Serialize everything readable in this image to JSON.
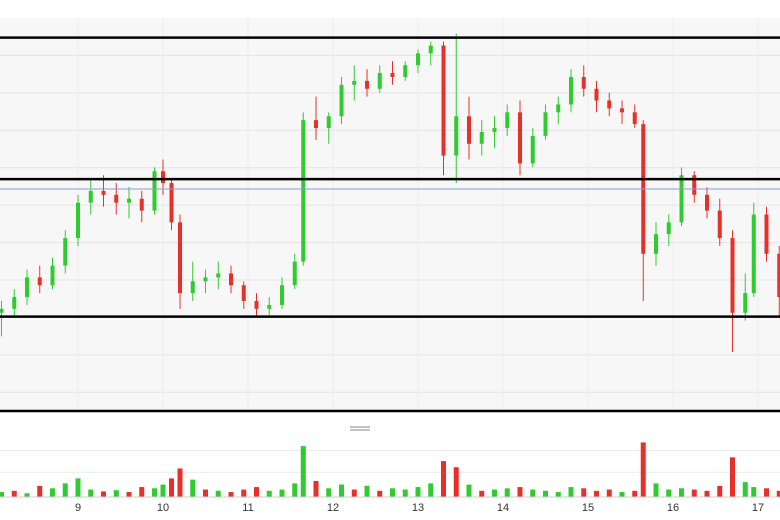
{
  "chart_data": [
    {
      "type": "candlestick",
      "title": "",
      "xlabel": "",
      "ylabel": "",
      "x_ticks": [
        "9",
        "10",
        "11",
        "12",
        "13",
        "14",
        "15",
        "16",
        "17"
      ],
      "x_tick_values": [
        9,
        10,
        11,
        12,
        13,
        14,
        15,
        16,
        17
      ],
      "grid": true,
      "colors": {
        "up": "#2ecc2e",
        "down": "#e8302a",
        "current_price_line": "#8a9ccc",
        "level_lines": "#000000"
      },
      "price_window": {
        "low": 0.0,
        "high": 100.0
      },
      "horizontal_levels": [
        95.0,
        59.0,
        24.0
      ],
      "current_price_level": 56.5,
      "series": [
        {
          "candles": [
            {
              "x": 8.1,
              "o": 25,
              "h": 28,
              "l": 19,
              "c": 26
            },
            {
              "x": 8.25,
              "o": 26,
              "h": 31,
              "l": 24,
              "c": 29
            },
            {
              "x": 8.4,
              "o": 29,
              "h": 36,
              "l": 27,
              "c": 34
            },
            {
              "x": 8.55,
              "o": 34,
              "h": 37,
              "l": 30,
              "c": 32
            },
            {
              "x": 8.7,
              "o": 32,
              "h": 39,
              "l": 31,
              "c": 37
            },
            {
              "x": 8.85,
              "o": 37,
              "h": 46,
              "l": 35,
              "c": 44
            },
            {
              "x": 9.0,
              "o": 44,
              "h": 55,
              "l": 42,
              "c": 53
            },
            {
              "x": 9.15,
              "o": 53,
              "h": 59,
              "l": 50,
              "c": 56
            },
            {
              "x": 9.3,
              "o": 56,
              "h": 60,
              "l": 52,
              "c": 55
            },
            {
              "x": 9.45,
              "o": 55,
              "h": 58,
              "l": 50,
              "c": 53
            },
            {
              "x": 9.6,
              "o": 53,
              "h": 57,
              "l": 49,
              "c": 54
            },
            {
              "x": 9.75,
              "o": 54,
              "h": 56,
              "l": 48,
              "c": 51
            },
            {
              "x": 9.9,
              "o": 51,
              "h": 62,
              "l": 50,
              "c": 61
            },
            {
              "x": 10.0,
              "o": 61,
              "h": 64,
              "l": 55,
              "c": 58
            },
            {
              "x": 10.1,
              "o": 58,
              "h": 59,
              "l": 46,
              "c": 48
            },
            {
              "x": 10.2,
              "o": 48,
              "h": 50,
              "l": 26,
              "c": 30
            },
            {
              "x": 10.35,
              "o": 30,
              "h": 38,
              "l": 28,
              "c": 33
            },
            {
              "x": 10.5,
              "o": 33,
              "h": 36,
              "l": 30,
              "c": 34
            },
            {
              "x": 10.65,
              "o": 34,
              "h": 38,
              "l": 31,
              "c": 35
            },
            {
              "x": 10.8,
              "o": 35,
              "h": 37,
              "l": 30,
              "c": 32
            },
            {
              "x": 10.95,
              "o": 32,
              "h": 33,
              "l": 26,
              "c": 28
            },
            {
              "x": 11.1,
              "o": 28,
              "h": 30,
              "l": 24,
              "c": 26
            },
            {
              "x": 11.25,
              "o": 26,
              "h": 29,
              "l": 24,
              "c": 27
            },
            {
              "x": 11.4,
              "o": 27,
              "h": 34,
              "l": 26,
              "c": 32
            },
            {
              "x": 11.55,
              "o": 32,
              "h": 40,
              "l": 31,
              "c": 38
            },
            {
              "x": 11.65,
              "o": 38,
              "h": 76,
              "l": 37,
              "c": 74
            },
            {
              "x": 11.8,
              "o": 74,
              "h": 80,
              "l": 69,
              "c": 72
            },
            {
              "x": 11.95,
              "o": 72,
              "h": 76,
              "l": 68,
              "c": 75
            },
            {
              "x": 12.1,
              "o": 75,
              "h": 85,
              "l": 73,
              "c": 83
            },
            {
              "x": 12.25,
              "o": 83,
              "h": 88,
              "l": 79,
              "c": 84
            },
            {
              "x": 12.4,
              "o": 84,
              "h": 87,
              "l": 80,
              "c": 82
            },
            {
              "x": 12.55,
              "o": 82,
              "h": 88,
              "l": 81,
              "c": 86
            },
            {
              "x": 12.7,
              "o": 86,
              "h": 89,
              "l": 83,
              "c": 85
            },
            {
              "x": 12.85,
              "o": 85,
              "h": 89,
              "l": 84,
              "c": 88
            },
            {
              "x": 13.0,
              "o": 88,
              "h": 92,
              "l": 86,
              "c": 91
            },
            {
              "x": 13.15,
              "o": 91,
              "h": 94,
              "l": 88,
              "c": 93
            },
            {
              "x": 13.3,
              "o": 93,
              "h": 94,
              "l": 60,
              "c": 65
            },
            {
              "x": 13.45,
              "o": 65,
              "h": 96,
              "l": 58,
              "c": 75
            },
            {
              "x": 13.6,
              "o": 75,
              "h": 80,
              "l": 64,
              "c": 68
            },
            {
              "x": 13.75,
              "o": 68,
              "h": 74,
              "l": 65,
              "c": 71
            },
            {
              "x": 13.9,
              "o": 71,
              "h": 75,
              "l": 67,
              "c": 72
            },
            {
              "x": 14.05,
              "o": 72,
              "h": 78,
              "l": 70,
              "c": 76
            },
            {
              "x": 14.2,
              "o": 76,
              "h": 79,
              "l": 60,
              "c": 63
            },
            {
              "x": 14.35,
              "o": 63,
              "h": 72,
              "l": 62,
              "c": 70
            },
            {
              "x": 14.5,
              "o": 70,
              "h": 78,
              "l": 69,
              "c": 76
            },
            {
              "x": 14.65,
              "o": 76,
              "h": 80,
              "l": 73,
              "c": 78
            },
            {
              "x": 14.8,
              "o": 78,
              "h": 87,
              "l": 76,
              "c": 85
            },
            {
              "x": 14.95,
              "o": 85,
              "h": 88,
              "l": 80,
              "c": 82
            },
            {
              "x": 15.1,
              "o": 82,
              "h": 84,
              "l": 76,
              "c": 79
            },
            {
              "x": 15.25,
              "o": 79,
              "h": 81,
              "l": 75,
              "c": 77
            },
            {
              "x": 15.4,
              "o": 77,
              "h": 79,
              "l": 73,
              "c": 76
            },
            {
              "x": 15.55,
              "o": 76,
              "h": 78,
              "l": 72,
              "c": 73
            },
            {
              "x": 15.65,
              "o": 73,
              "h": 74,
              "l": 28,
              "c": 40
            },
            {
              "x": 15.8,
              "o": 40,
              "h": 48,
              "l": 37,
              "c": 45
            },
            {
              "x": 15.95,
              "o": 45,
              "h": 50,
              "l": 42,
              "c": 48
            },
            {
              "x": 16.1,
              "o": 48,
              "h": 62,
              "l": 47,
              "c": 60
            },
            {
              "x": 16.25,
              "o": 60,
              "h": 61,
              "l": 53,
              "c": 55
            },
            {
              "x": 16.4,
              "o": 55,
              "h": 57,
              "l": 49,
              "c": 51
            },
            {
              "x": 16.55,
              "o": 51,
              "h": 54,
              "l": 42,
              "c": 44
            },
            {
              "x": 16.7,
              "o": 44,
              "h": 46,
              "l": 15,
              "c": 25
            },
            {
              "x": 16.85,
              "o": 25,
              "h": 35,
              "l": 23,
              "c": 30
            },
            {
              "x": 16.95,
              "o": 30,
              "h": 53,
              "l": 29,
              "c": 50
            },
            {
              "x": 17.1,
              "o": 50,
              "h": 52,
              "l": 38,
              "c": 40
            },
            {
              "x": 17.25,
              "o": 40,
              "h": 42,
              "l": 24,
              "c": 29
            }
          ]
        }
      ],
      "volume": {
        "type": "bar",
        "ylim": [
          0,
          100
        ],
        "values": [
          {
            "x": 8.1,
            "v": 8,
            "up": true
          },
          {
            "x": 8.25,
            "v": 10,
            "up": false
          },
          {
            "x": 8.4,
            "v": 6,
            "up": true
          },
          {
            "x": 8.55,
            "v": 18,
            "up": false
          },
          {
            "x": 8.7,
            "v": 14,
            "up": true
          },
          {
            "x": 8.85,
            "v": 22,
            "up": true
          },
          {
            "x": 9.0,
            "v": 30,
            "up": true
          },
          {
            "x": 9.15,
            "v": 12,
            "up": true
          },
          {
            "x": 9.3,
            "v": 9,
            "up": false
          },
          {
            "x": 9.45,
            "v": 11,
            "up": true
          },
          {
            "x": 9.6,
            "v": 8,
            "up": false
          },
          {
            "x": 9.75,
            "v": 16,
            "up": false
          },
          {
            "x": 9.9,
            "v": 14,
            "up": true
          },
          {
            "x": 10.0,
            "v": 20,
            "up": true
          },
          {
            "x": 10.1,
            "v": 30,
            "up": false
          },
          {
            "x": 10.2,
            "v": 46,
            "up": false
          },
          {
            "x": 10.35,
            "v": 28,
            "up": true
          },
          {
            "x": 10.5,
            "v": 12,
            "up": false
          },
          {
            "x": 10.65,
            "v": 10,
            "up": true
          },
          {
            "x": 10.8,
            "v": 8,
            "up": false
          },
          {
            "x": 10.95,
            "v": 12,
            "up": false
          },
          {
            "x": 11.1,
            "v": 16,
            "up": false
          },
          {
            "x": 11.25,
            "v": 10,
            "up": true
          },
          {
            "x": 11.4,
            "v": 12,
            "up": true
          },
          {
            "x": 11.55,
            "v": 22,
            "up": true
          },
          {
            "x": 11.65,
            "v": 82,
            "up": true
          },
          {
            "x": 11.8,
            "v": 26,
            "up": false
          },
          {
            "x": 11.95,
            "v": 14,
            "up": true
          },
          {
            "x": 12.1,
            "v": 20,
            "up": true
          },
          {
            "x": 12.25,
            "v": 12,
            "up": false
          },
          {
            "x": 12.4,
            "v": 18,
            "up": true
          },
          {
            "x": 12.55,
            "v": 10,
            "up": false
          },
          {
            "x": 12.7,
            "v": 14,
            "up": true
          },
          {
            "x": 12.85,
            "v": 12,
            "up": true
          },
          {
            "x": 13.0,
            "v": 16,
            "up": true
          },
          {
            "x": 13.15,
            "v": 22,
            "up": true
          },
          {
            "x": 13.3,
            "v": 58,
            "up": false
          },
          {
            "x": 13.45,
            "v": 48,
            "up": false
          },
          {
            "x": 13.6,
            "v": 20,
            "up": true
          },
          {
            "x": 13.75,
            "v": 10,
            "up": false
          },
          {
            "x": 13.9,
            "v": 12,
            "up": true
          },
          {
            "x": 14.05,
            "v": 14,
            "up": true
          },
          {
            "x": 14.2,
            "v": 16,
            "up": false
          },
          {
            "x": 14.35,
            "v": 12,
            "up": true
          },
          {
            "x": 14.5,
            "v": 10,
            "up": true
          },
          {
            "x": 14.65,
            "v": 8,
            "up": true
          },
          {
            "x": 14.8,
            "v": 16,
            "up": true
          },
          {
            "x": 14.95,
            "v": 14,
            "up": false
          },
          {
            "x": 15.1,
            "v": 10,
            "up": false
          },
          {
            "x": 15.25,
            "v": 12,
            "up": false
          },
          {
            "x": 15.4,
            "v": 8,
            "up": true
          },
          {
            "x": 15.55,
            "v": 10,
            "up": false
          },
          {
            "x": 15.65,
            "v": 88,
            "up": false
          },
          {
            "x": 15.8,
            "v": 22,
            "up": true
          },
          {
            "x": 15.95,
            "v": 12,
            "up": true
          },
          {
            "x": 16.1,
            "v": 14,
            "up": true
          },
          {
            "x": 16.25,
            "v": 12,
            "up": false
          },
          {
            "x": 16.4,
            "v": 10,
            "up": false
          },
          {
            "x": 16.55,
            "v": 18,
            "up": false
          },
          {
            "x": 16.7,
            "v": 64,
            "up": false
          },
          {
            "x": 16.85,
            "v": 24,
            "up": true
          },
          {
            "x": 16.95,
            "v": 16,
            "up": true
          },
          {
            "x": 17.1,
            "v": 14,
            "up": false
          },
          {
            "x": 17.25,
            "v": 10,
            "up": false
          }
        ]
      }
    }
  ]
}
